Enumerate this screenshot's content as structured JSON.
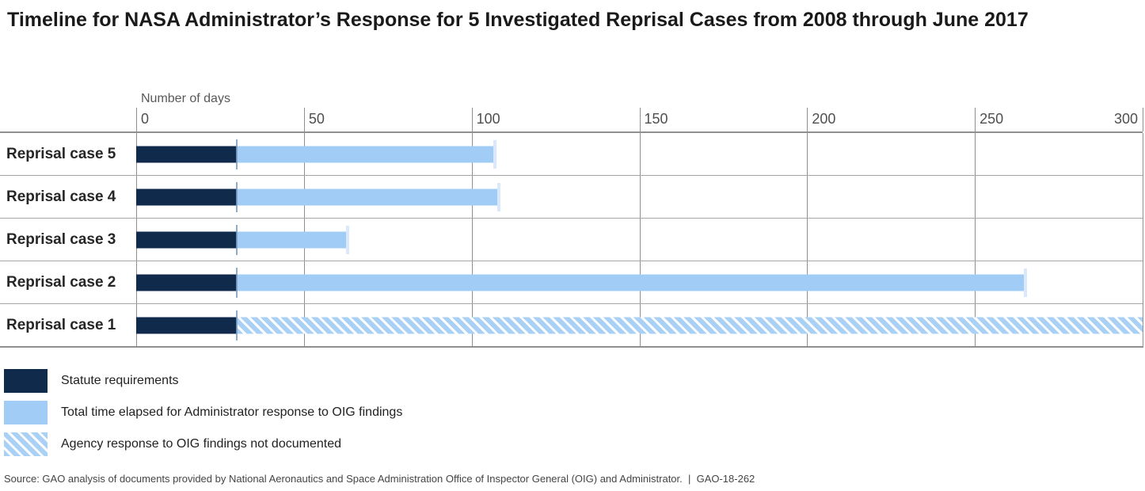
{
  "title": "Timeline for NASA Administrator’s Response for 5 Investigated Reprisal Cases from 2008 through June 2017",
  "axis": {
    "label": "Number of days",
    "max": 300,
    "ticks": [
      0,
      50,
      100,
      150,
      200,
      250,
      300
    ]
  },
  "rows": [
    {
      "label": "Reprisal case 5",
      "statute_days": 30,
      "total_days": 107,
      "response_documented": true
    },
    {
      "label": "Reprisal case 4",
      "statute_days": 30,
      "total_days": 108,
      "response_documented": true
    },
    {
      "label": "Reprisal case 3",
      "statute_days": 30,
      "total_days": 63,
      "response_documented": true
    },
    {
      "label": "Reprisal case 2",
      "statute_days": 30,
      "total_days": 265,
      "response_documented": true
    },
    {
      "label": "Reprisal case 1",
      "statute_days": 30,
      "total_days": 300,
      "response_documented": false
    }
  ],
  "legend": {
    "items": [
      {
        "key": "statute",
        "label": "Statute requirements"
      },
      {
        "key": "elapsed",
        "label": "Total time elapsed for Administrator response to OIG findings"
      },
      {
        "key": "not_documented",
        "label": "Agency response to OIG findings not documented"
      }
    ]
  },
  "source": "Source: GAO analysis of documents provided by National Aeronautics and Space Administration Office of Inspector General (OIG) and Administrator.  |  GAO-18-262",
  "colors": {
    "statute": "#102a4c",
    "elapsed": "#a0ccf5",
    "hatch_stripe": "#a9d1f6",
    "grid": "#8f8f8f"
  },
  "chart_data": {
    "type": "bar",
    "orientation": "horizontal",
    "title": "Timeline for NASA Administrator’s Response for 5 Investigated Reprisal Cases from 2008 through June 2017",
    "xlabel": "Number of days",
    "ylabel": "",
    "xlim": [
      0,
      300
    ],
    "x_ticks": [
      0,
      50,
      100,
      150,
      200,
      250,
      300
    ],
    "grid": true,
    "legend_position": "bottom-left",
    "categories": [
      "Reprisal case 5",
      "Reprisal case 4",
      "Reprisal case 3",
      "Reprisal case 2",
      "Reprisal case 1"
    ],
    "series": [
      {
        "name": "Statute requirements",
        "style": "solid-dark-navy",
        "values": [
          30,
          30,
          30,
          30,
          30
        ]
      },
      {
        "name": "Total time elapsed for Administrator response to OIG findings",
        "style": "solid-light-blue",
        "start": 30,
        "end_values": [
          107,
          108,
          63,
          265,
          null
        ]
      },
      {
        "name": "Agency response to OIG findings not documented",
        "style": "diagonal-hatch-light-blue",
        "start": 30,
        "end_values": [
          null,
          null,
          null,
          null,
          300
        ]
      }
    ],
    "notes": "Values estimated from pixel positions; Reprisal case 1 hatched bar runs to the 300-day chart edge (response not documented)."
  }
}
